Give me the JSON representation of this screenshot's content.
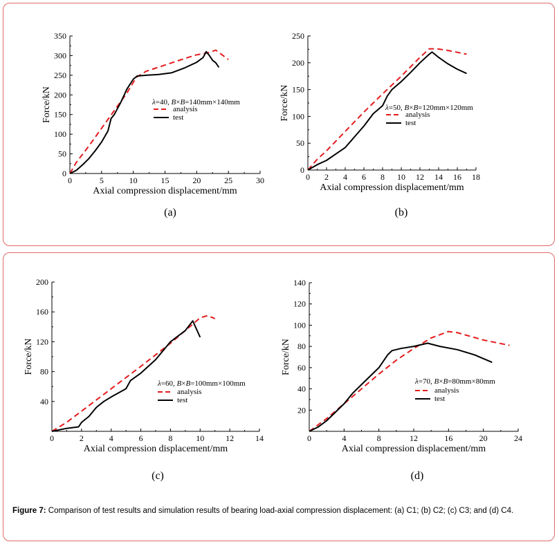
{
  "caption": {
    "label": "Figure 7:",
    "text": " Comparison of test results and simulation results of bearing load-axial compression displacement: (a) C1; (b) C2; (c) C3; and (d) C4."
  },
  "colors": {
    "analysis": "#e31a1c",
    "test": "#000000",
    "frame": "#e06a6a"
  },
  "chart_data": [
    {
      "id": "a",
      "type": "line",
      "panel_label": "(a)",
      "xlabel": "Axial compression displacement/mm",
      "ylabel": "Force/kN",
      "xlim": [
        0,
        30
      ],
      "ylim": [
        0,
        350
      ],
      "xticks": [
        0,
        5,
        10,
        15,
        20,
        25,
        30
      ],
      "yticks": [
        0,
        50,
        100,
        150,
        200,
        250,
        300,
        350
      ],
      "annotation": {
        "lambda": "λ",
        "lambda_val": "=40, ",
        "B1": "B",
        "times": "×",
        "B2": "B",
        "size": "=140mm×140mm"
      },
      "legend": [
        "analysis",
        "test"
      ],
      "series": [
        {
          "name": "analysis",
          "style": "dashed",
          "x": [
            0,
            1,
            3,
            5,
            7,
            9,
            10.5,
            12,
            15,
            18,
            20,
            22,
            23,
            25
          ],
          "y": [
            0,
            28,
            70,
            115,
            160,
            205,
            245,
            260,
            276,
            292,
            302,
            308,
            314,
            290
          ]
        },
        {
          "name": "test",
          "style": "solid",
          "x": [
            0,
            1,
            2,
            3,
            4,
            5,
            6,
            6.5,
            7,
            8,
            9,
            10,
            10.6,
            12,
            14,
            16,
            18,
            20,
            21,
            21.5,
            22,
            22.5,
            23,
            23.5
          ],
          "y": [
            0,
            8,
            22,
            38,
            58,
            80,
            108,
            140,
            150,
            180,
            215,
            240,
            248,
            250,
            252,
            256,
            268,
            283,
            295,
            310,
            300,
            288,
            282,
            270
          ]
        }
      ]
    },
    {
      "id": "b",
      "type": "line",
      "panel_label": "(b)",
      "xlabel": "Axial compression displacement/mm",
      "ylabel": "Force/kN",
      "xlim": [
        0,
        18
      ],
      "ylim": [
        0,
        250
      ],
      "xticks": [
        0,
        2,
        4,
        6,
        8,
        10,
        12,
        14,
        16,
        18
      ],
      "yticks": [
        0,
        50,
        100,
        150,
        200,
        250
      ],
      "annotation": {
        "lambda": "λ",
        "lambda_val": "=50, ",
        "B1": "B",
        "times": "×",
        "B2": "B",
        "size": "=120mm×120mm"
      },
      "legend": [
        "analysis",
        "test"
      ],
      "series": [
        {
          "name": "analysis",
          "style": "dashed",
          "x": [
            0,
            1,
            2,
            4,
            6,
            8,
            10,
            12,
            13,
            13.8,
            15,
            17
          ],
          "y": [
            0,
            20,
            36,
            72,
            108,
            142,
            175,
            210,
            226,
            226,
            223,
            216
          ]
        },
        {
          "name": "test",
          "style": "solid",
          "x": [
            0,
            1,
            2,
            3,
            4,
            5,
            6,
            7,
            8,
            8.5,
            9,
            10,
            11,
            12,
            13,
            13.3,
            14,
            15,
            16,
            17
          ],
          "y": [
            0,
            10,
            18,
            30,
            42,
            62,
            82,
            105,
            120,
            138,
            150,
            165,
            182,
            200,
            216,
            220,
            210,
            198,
            188,
            180
          ]
        }
      ]
    },
    {
      "id": "c",
      "type": "line",
      "panel_label": "(c)",
      "xlabel": "Axial compression displacement/mm",
      "ylabel": "Force/kN",
      "xlim": [
        0,
        14
      ],
      "ylim": [
        0,
        200
      ],
      "xticks": [
        0,
        2,
        4,
        6,
        8,
        10,
        12,
        14
      ],
      "yticks": [
        40,
        80,
        120,
        160,
        200
      ],
      "annotation": {
        "lambda": "λ",
        "lambda_val": "=60, ",
        "B1": "B",
        "times": "×",
        "B2": "B",
        "size": "=100mm×100mm"
      },
      "legend": [
        "analysis",
        "test"
      ],
      "series": [
        {
          "name": "analysis",
          "style": "dashed",
          "x": [
            0,
            1,
            2,
            4,
            6,
            8,
            10,
            10.5,
            11
          ],
          "y": [
            0,
            12,
            27,
            57,
            87,
            118,
            152,
            155,
            151
          ]
        },
        {
          "name": "test",
          "style": "solid",
          "x": [
            0,
            1,
            1.8,
            2,
            2.5,
            3,
            3.5,
            4,
            5,
            5.3,
            6,
            7,
            8,
            9,
            9.5,
            10
          ],
          "y": [
            0,
            4,
            6,
            12,
            20,
            32,
            40,
            46,
            57,
            68,
            78,
            96,
            120,
            135,
            148,
            126
          ]
        }
      ]
    },
    {
      "id": "d",
      "type": "line",
      "panel_label": "(d)",
      "xlabel": "Axial compression displacement/mm",
      "ylabel": "Force/kN",
      "xlim": [
        0,
        24
      ],
      "ylim": [
        0,
        140
      ],
      "xticks": [
        0,
        4,
        8,
        12,
        16,
        20,
        24
      ],
      "yticks": [
        20,
        40,
        60,
        80,
        100,
        120,
        140
      ],
      "annotation": {
        "lambda": "λ",
        "lambda_val": "=70, ",
        "B1": "B",
        "times": "×",
        "B2": "B",
        "size": "=80mm×80mm"
      },
      "legend": [
        "analysis",
        "test"
      ],
      "series": [
        {
          "name": "analysis",
          "style": "dashed",
          "x": [
            0,
            2,
            4,
            6,
            8,
            10,
            12,
            14,
            16,
            17,
            20,
            23
          ],
          "y": [
            0,
            12,
            26,
            40,
            54,
            67,
            78,
            88,
            94,
            93,
            86,
            81
          ]
        },
        {
          "name": "test",
          "style": "solid",
          "x": [
            0,
            1,
            2,
            3,
            4,
            5,
            6,
            7,
            8,
            9,
            9.5,
            10.5,
            12,
            13.6,
            15,
            17,
            19,
            21
          ],
          "y": [
            0,
            4,
            10,
            18,
            26,
            36,
            44,
            52,
            60,
            72,
            76,
            78,
            80,
            83,
            80,
            77,
            72,
            65
          ]
        }
      ]
    }
  ]
}
